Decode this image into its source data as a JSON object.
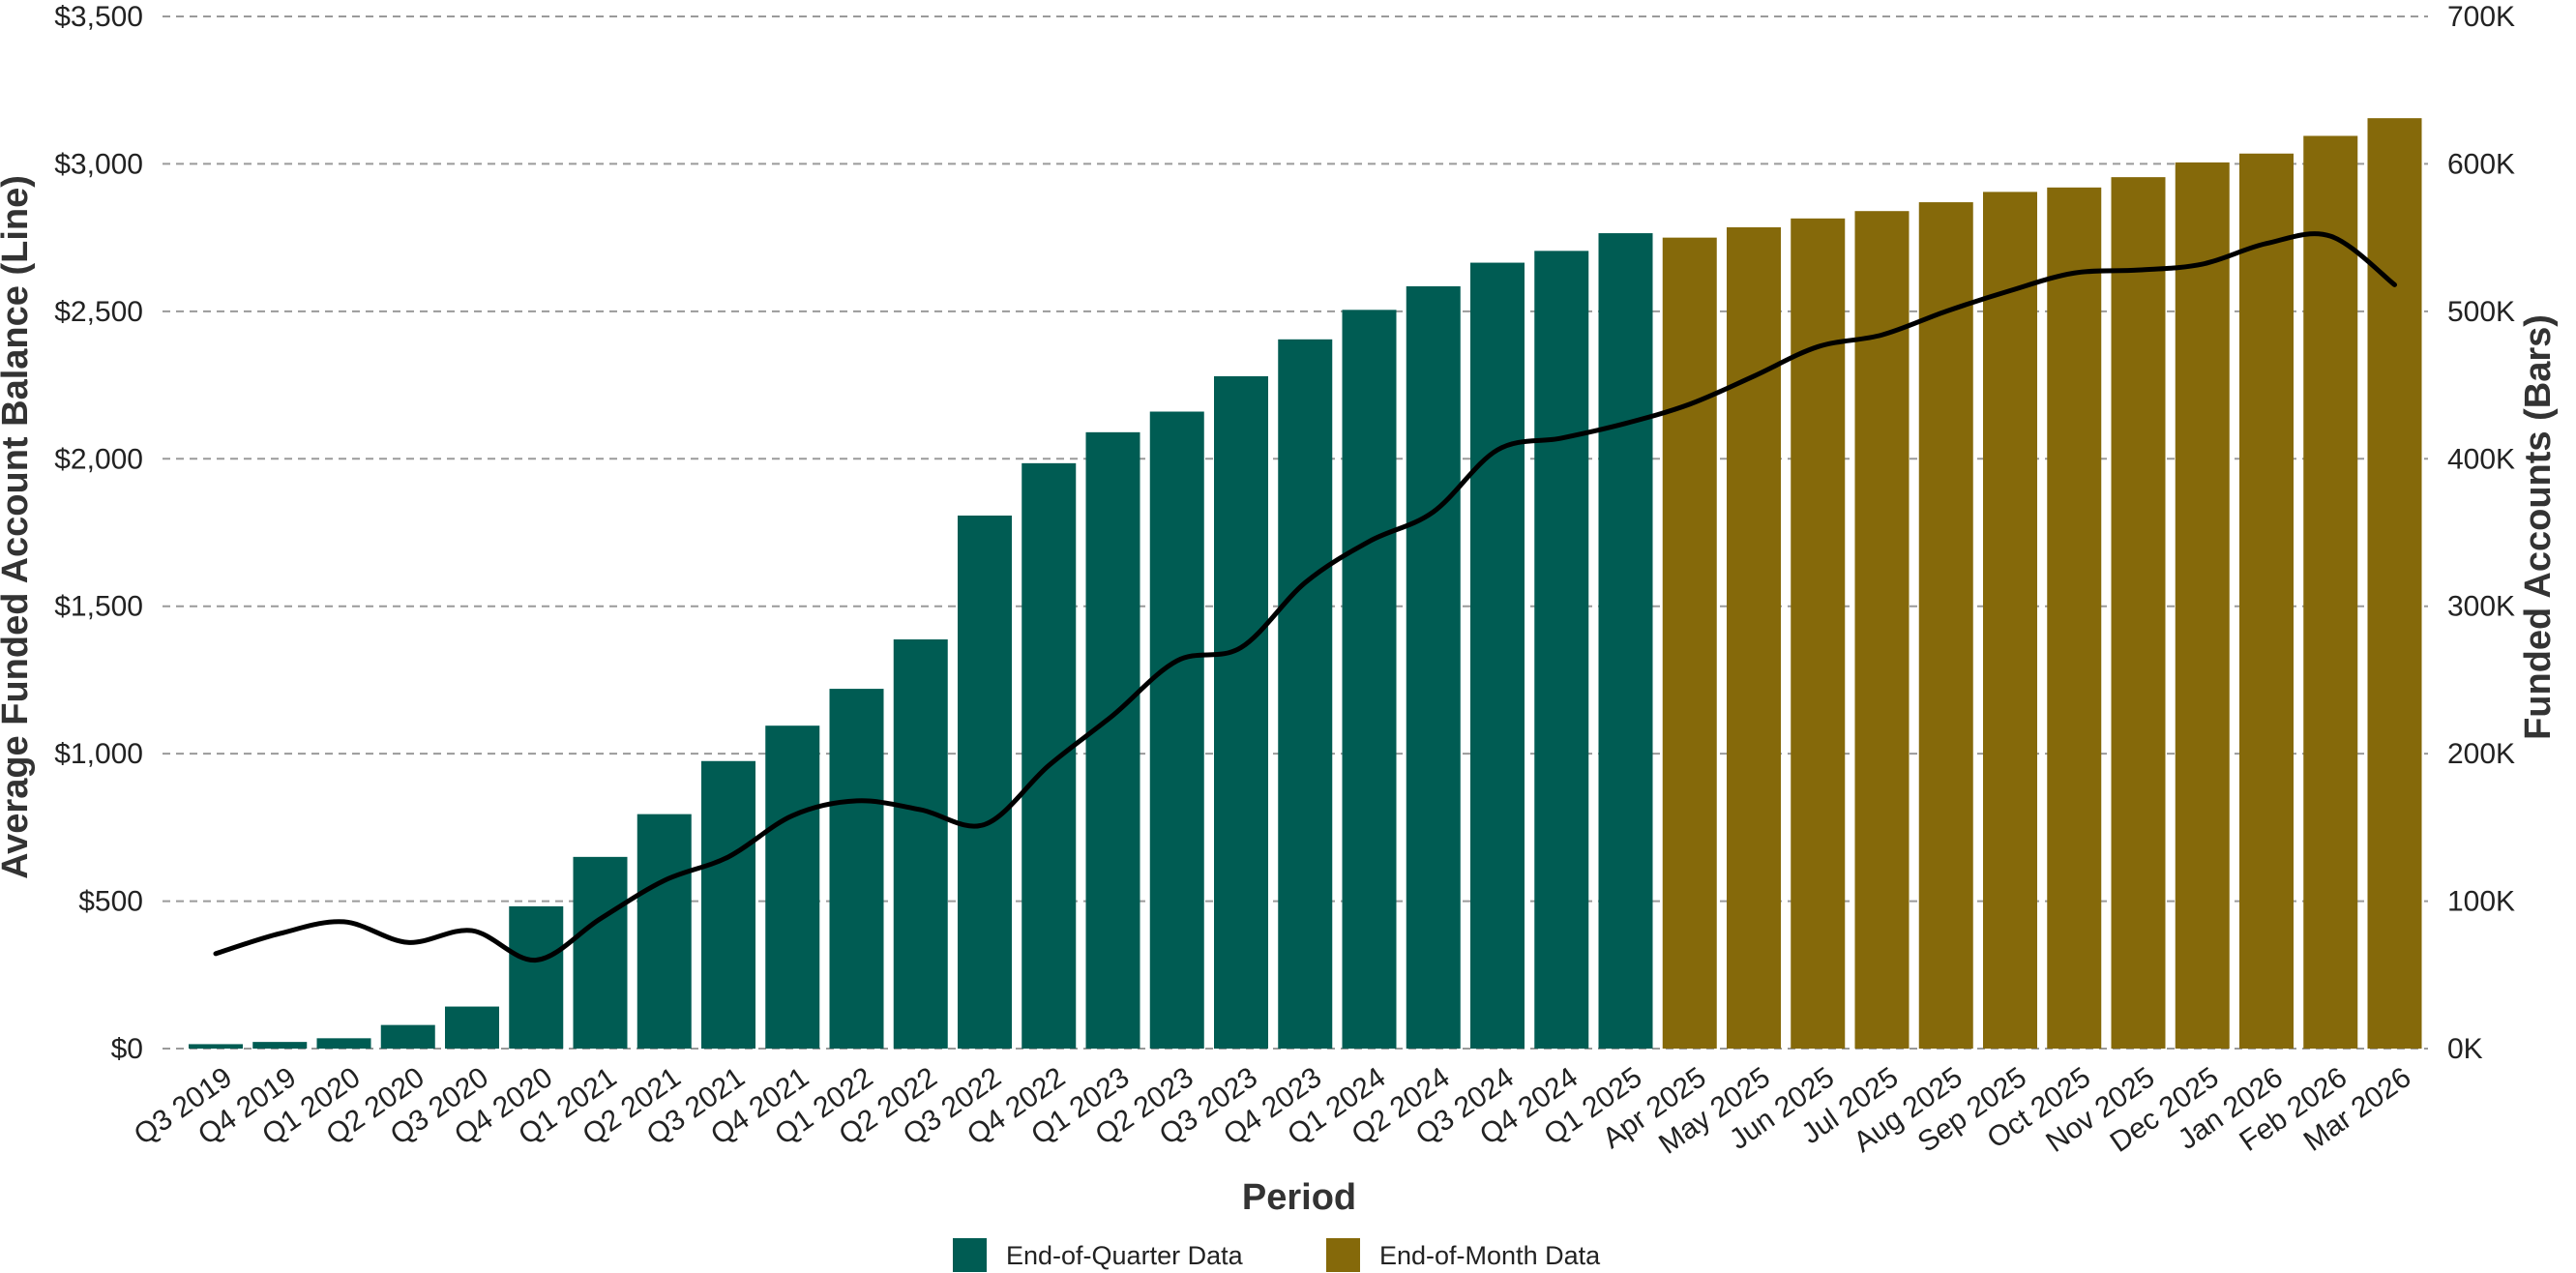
{
  "chart_data": {
    "type": "bar",
    "xlabel": "Period",
    "ylabel_left": "Average Funded Account Balance (Line)",
    "ylabel_right": "Funded Accounts (Bars)",
    "ylim_left": [
      0,
      3500
    ],
    "ylim_right": [
      0,
      700000
    ],
    "left_ticks": [
      "$0",
      "$500",
      "$1,000",
      "$1,500",
      "$2,000",
      "$2,500",
      "$3,000",
      "$3,500"
    ],
    "right_ticks": [
      "0K",
      "100K",
      "200K",
      "300K",
      "400K",
      "500K",
      "600K",
      "700K"
    ],
    "grid": "horizontal dashed",
    "legend_position": "bottom",
    "categories": [
      "Q3 2019",
      "Q4 2019",
      "Q1 2020",
      "Q2 2020",
      "Q3 2020",
      "Q4 2020",
      "Q1 2021",
      "Q2 2021",
      "Q3 2021",
      "Q4 2021",
      "Q1 2022",
      "Q2 2022",
      "Q3 2022",
      "Q4 2022",
      "Q1 2023",
      "Q2 2023",
      "Q3 2023",
      "Q4 2023",
      "Q1 2024",
      "Q2 2024",
      "Q3 2024",
      "Q4 2024",
      "Q1 2025",
      "Apr 2025",
      "May 2025",
      "Jun 2025",
      "Jul 2025",
      "Aug 2025",
      "Sep 2025",
      "Oct 2025",
      "Nov 2025",
      "Dec 2025",
      "Jan 2026",
      "Feb 2026",
      "Mar 2026"
    ],
    "bar_groups": [
      "quarter",
      "quarter",
      "quarter",
      "quarter",
      "quarter",
      "quarter",
      "quarter",
      "quarter",
      "quarter",
      "quarter",
      "quarter",
      "quarter",
      "quarter",
      "quarter",
      "quarter",
      "quarter",
      "quarter",
      "quarter",
      "quarter",
      "quarter",
      "quarter",
      "quarter",
      "quarter",
      "month",
      "month",
      "month",
      "month",
      "month",
      "month",
      "month",
      "month",
      "month",
      "month",
      "month",
      "month"
    ],
    "series": [
      {
        "type": "bar",
        "axis": "right",
        "values": [
          3000,
          4500,
          7000,
          16000,
          28500,
          96500,
          130000,
          159000,
          195000,
          219000,
          244000,
          277500,
          361500,
          397000,
          418000,
          432000,
          456000,
          481000,
          501000,
          517000,
          533000,
          541000,
          553000,
          550000,
          557000,
          563000,
          568000,
          574000,
          581000,
          584000,
          591000,
          601000,
          607000,
          619000,
          631000
        ]
      },
      {
        "type": "line",
        "axis": "left",
        "values": [
          322,
          390,
          430,
          360,
          400,
          300,
          440,
          570,
          650,
          790,
          840,
          810,
          760,
          960,
          1130,
          1315,
          1360,
          1580,
          1720,
          1820,
          2030,
          2070,
          2120,
          2185,
          2280,
          2380,
          2420,
          2500,
          2570,
          2630,
          2640,
          2660,
          2730,
          2755,
          2590
        ]
      }
    ],
    "legend": [
      {
        "label": "End-of-Quarter Data",
        "color": "#005c53"
      },
      {
        "label": "End-of-Month Data",
        "color": "#85690a"
      }
    ],
    "colors": {
      "quarter": "#005c53",
      "month": "#85690a",
      "line": "#000000",
      "grid": "#9a9a9a"
    }
  }
}
